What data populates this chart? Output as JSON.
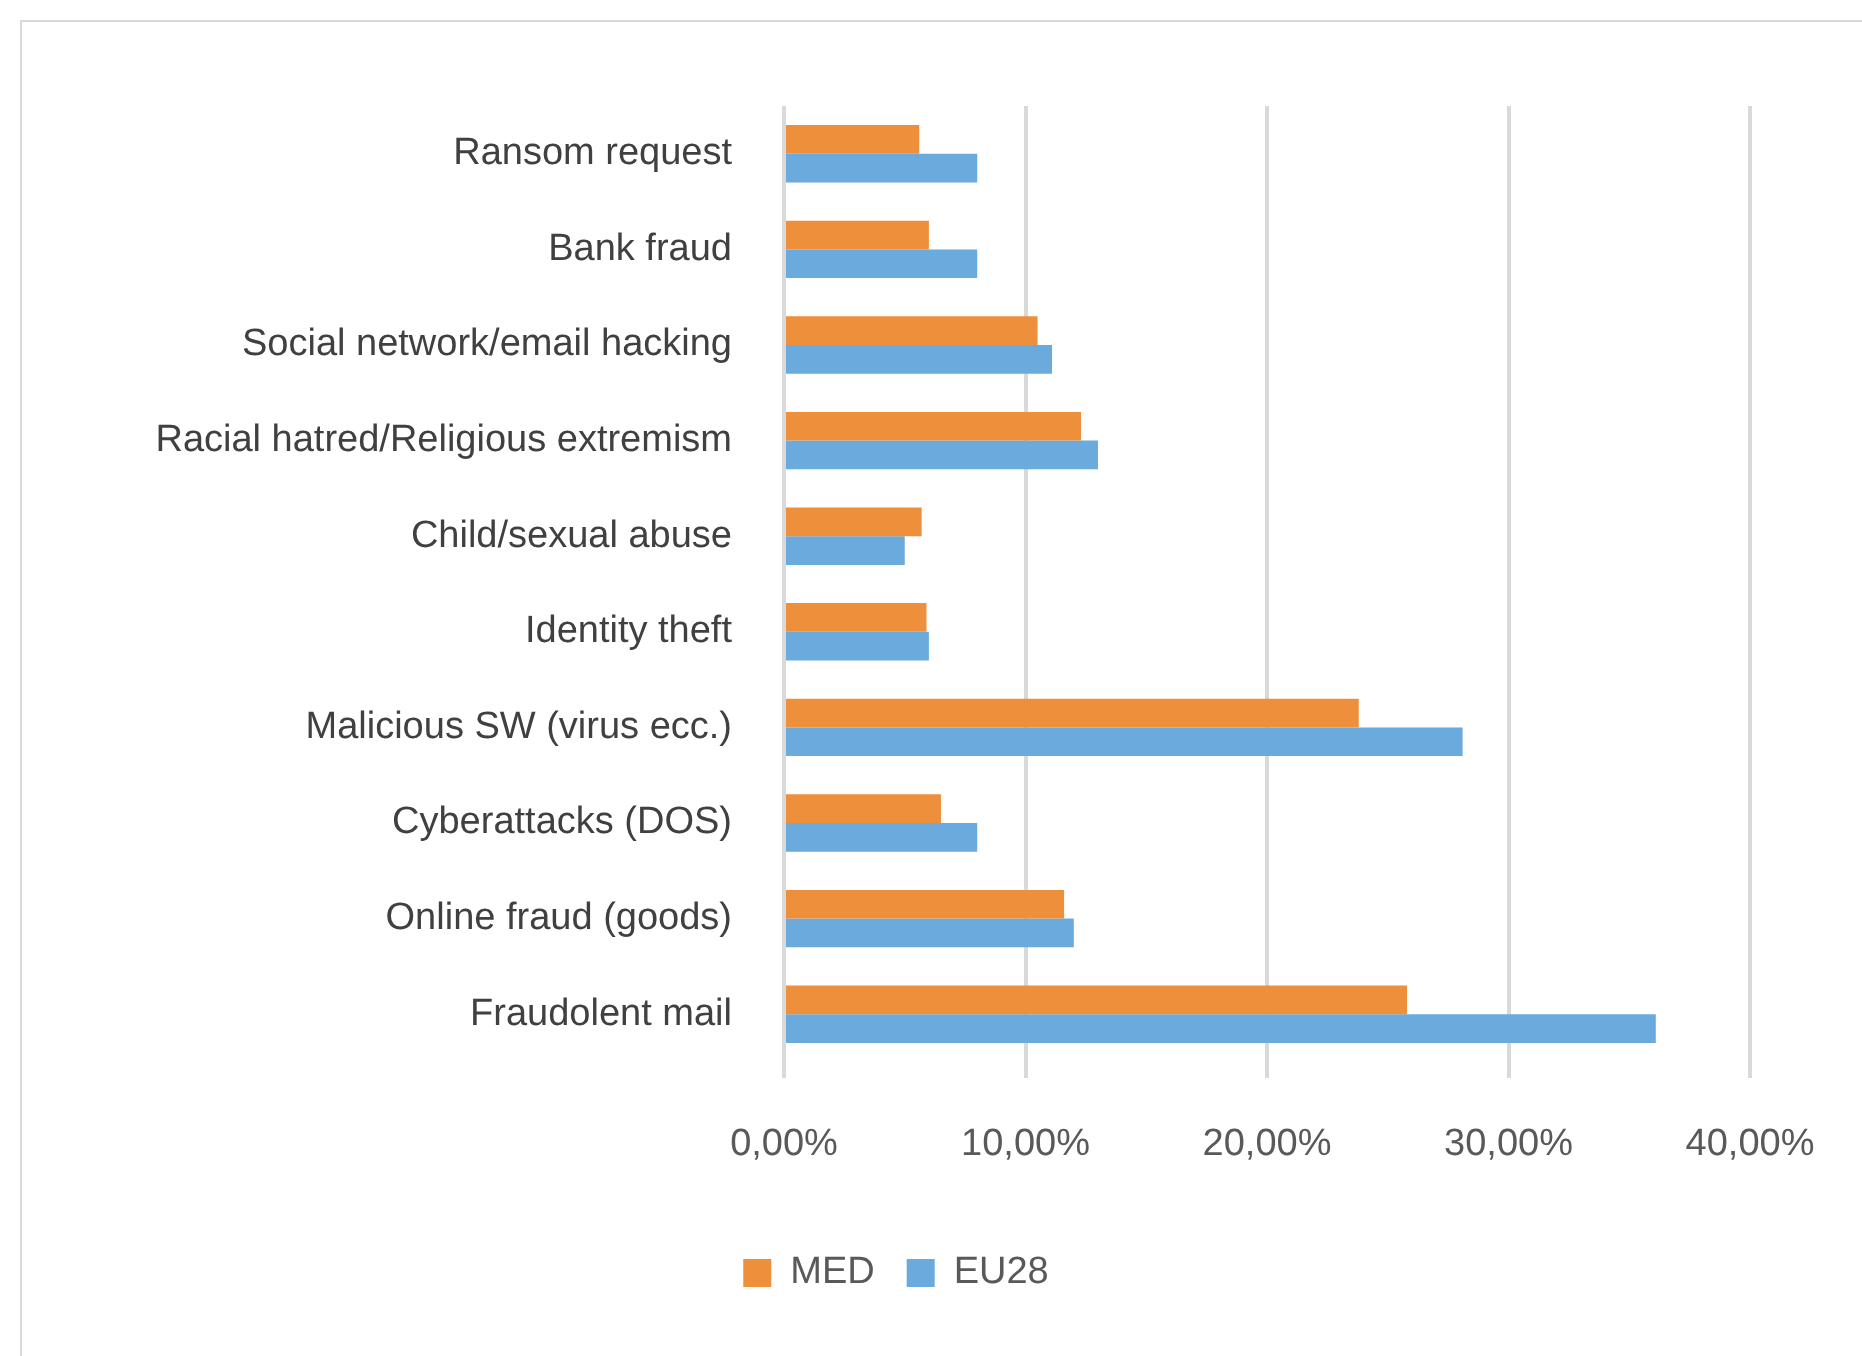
{
  "chart_data": {
    "type": "bar",
    "orientation": "horizontal",
    "categories": [
      "Ransom request",
      "Bank fraud",
      "Social network/email hacking",
      "Racial hatred/Religious extremism",
      "Child/sexual abuse",
      "Identity theft",
      "Malicious SW (virus ecc.)",
      "Cyberattacks (DOS)",
      "Online fraud (goods)",
      "Fraudolent mail"
    ],
    "series": [
      {
        "name": "MED",
        "color": "#ee8f3c",
        "values": [
          5.6,
          6.0,
          10.5,
          12.3,
          5.7,
          5.9,
          23.8,
          6.5,
          11.6,
          25.8
        ]
      },
      {
        "name": "EU28",
        "color": "#6aaadc",
        "values": [
          8.0,
          8.0,
          11.1,
          13.0,
          5.0,
          6.0,
          28.1,
          8.0,
          12.0,
          36.1
        ]
      }
    ],
    "xlim": [
      0,
      40
    ],
    "xticks": [
      {
        "value": 0,
        "label": "0,00%"
      },
      {
        "value": 10,
        "label": "10,00%"
      },
      {
        "value": 20,
        "label": "20,00%"
      },
      {
        "value": 30,
        "label": "30,00%"
      },
      {
        "value": 40,
        "label": "40,00%"
      }
    ],
    "grid": "x",
    "legend": "bottom"
  }
}
